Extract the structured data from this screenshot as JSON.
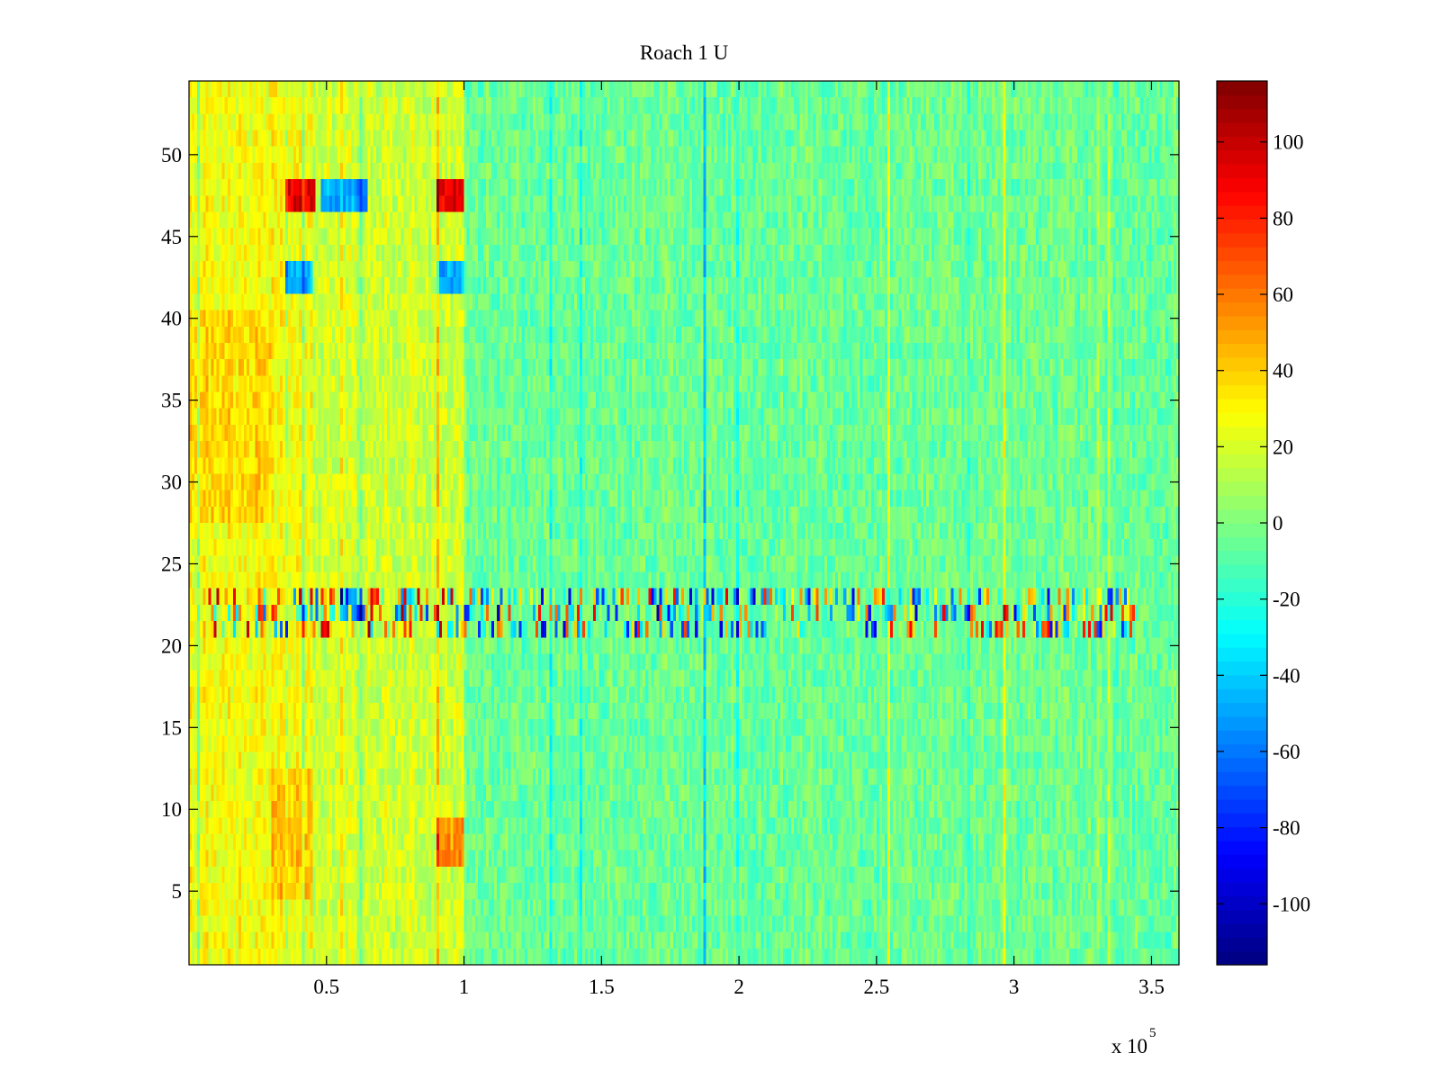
{
  "chart_data": {
    "type": "heatmap",
    "title": "Roach 1 U",
    "xlabel": "",
    "ylabel": "",
    "x_exponent_label": "x 10",
    "x_exponent_power": "5",
    "xlim": [
      0,
      3.6
    ],
    "ylim": [
      0.5,
      54.5
    ],
    "x_ticks": [
      0.5,
      1,
      1.5,
      2,
      2.5,
      3,
      3.5
    ],
    "x_tick_labels": [
      "0.5",
      "1",
      "1.5",
      "2",
      "2.5",
      "3",
      "3.5"
    ],
    "y_ticks": [
      5,
      10,
      15,
      20,
      25,
      30,
      35,
      40,
      45,
      50
    ],
    "y_tick_labels": [
      "5",
      "10",
      "15",
      "20",
      "25",
      "30",
      "35",
      "40",
      "45",
      "50"
    ],
    "rows": 54,
    "columns": 360,
    "colormap": "jet",
    "clim": [
      -116,
      116
    ],
    "colorbar": {
      "placement": "right",
      "ticks": [
        -100,
        -80,
        -60,
        -40,
        -20,
        0,
        20,
        40,
        60,
        80,
        100
      ],
      "tick_labels": [
        "-100",
        "-80",
        "-60",
        "-40",
        "-20",
        "0",
        "20",
        "40",
        "60",
        "80",
        "100"
      ]
    },
    "base_level": -5,
    "noise_amplitude": 12,
    "regions": [
      {
        "x": [
          0,
          1.0
        ],
        "y": [
          1,
          54
        ],
        "level": 18
      },
      {
        "x": [
          0,
          0.45
        ],
        "y": [
          1,
          54
        ],
        "level": 28
      },
      {
        "x": [
          0.3,
          0.45
        ],
        "y": [
          5,
          12
        ],
        "level": 42
      },
      {
        "x": [
          0,
          0.3
        ],
        "y": [
          28,
          40
        ],
        "level": 38
      },
      {
        "x": [
          0.35,
          0.46
        ],
        "y": [
          46.5,
          48.5
        ],
        "level": 95
      },
      {
        "x": [
          0.9,
          1.0
        ],
        "y": [
          46.5,
          48.5
        ],
        "level": 95
      },
      {
        "x": [
          0.48,
          0.65
        ],
        "y": [
          46.5,
          48.5
        ],
        "level": -50
      },
      {
        "x": [
          0.35,
          0.45
        ],
        "y": [
          41.5,
          43.5
        ],
        "level": -45
      },
      {
        "x": [
          0.9,
          1.0
        ],
        "y": [
          41.5,
          43.5
        ],
        "level": -45
      },
      {
        "x": [
          0.55,
          0.63
        ],
        "y": [
          22,
          23.5
        ],
        "level": -60
      },
      {
        "x": [
          0.9,
          1.0
        ],
        "y": [
          7,
          9
        ],
        "level": 55
      }
    ],
    "band_rows": [
      21,
      22,
      23
    ],
    "band_x_range": [
      0.05,
      3.45
    ],
    "band_amplitude": 90
  }
}
